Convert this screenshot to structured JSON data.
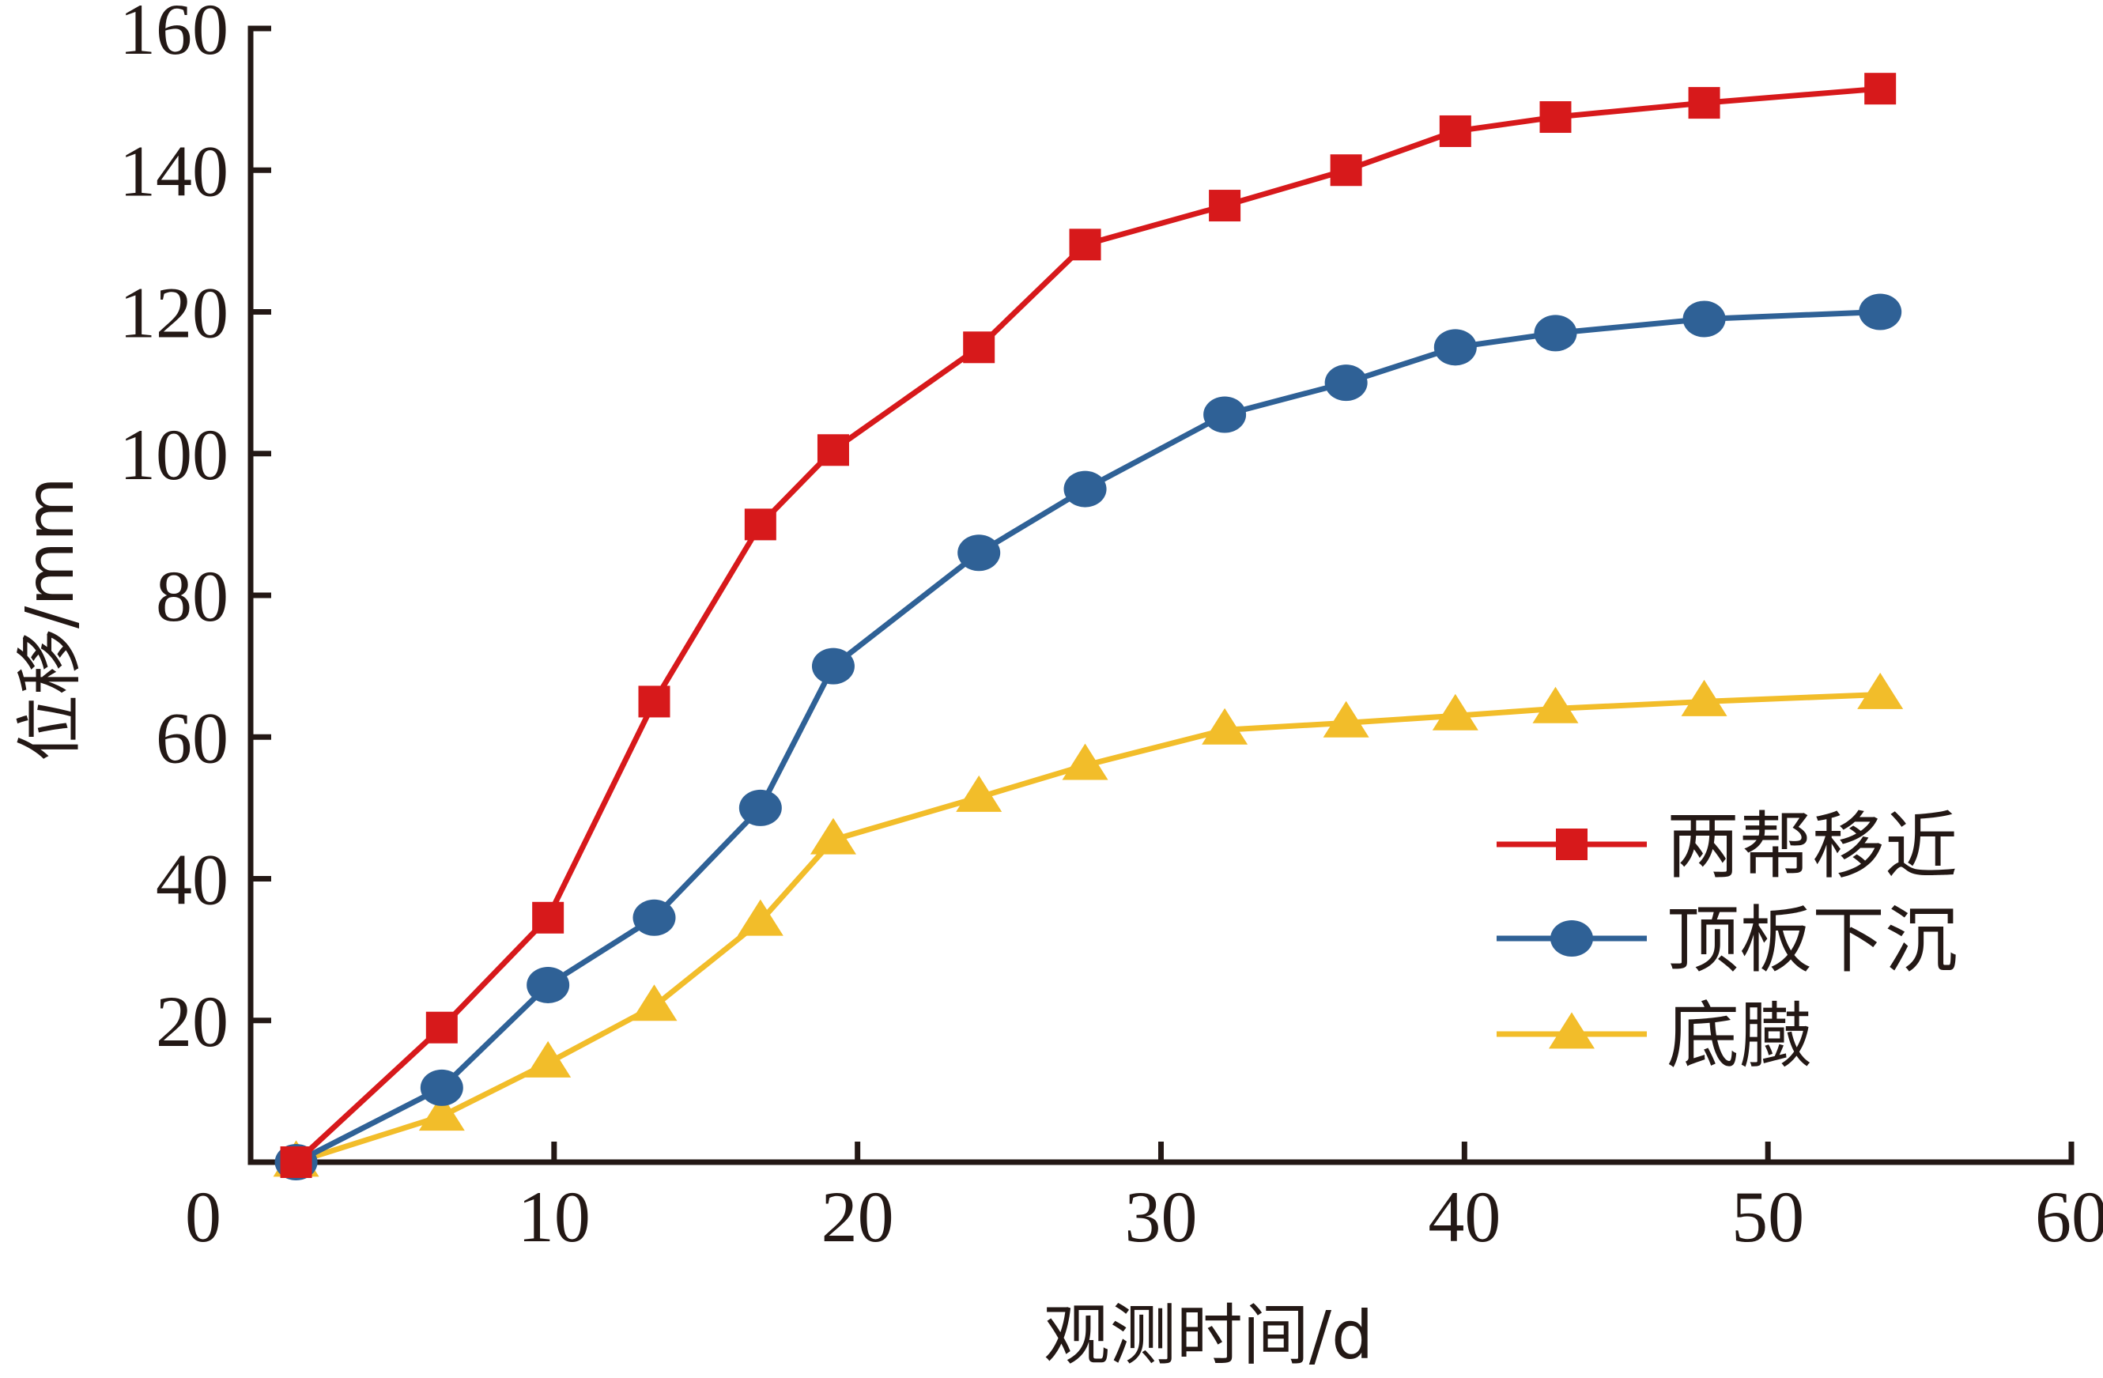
{
  "chart_data": {
    "type": "line",
    "title": "",
    "xlabel": "观测时间/d",
    "ylabel": "位移/mm",
    "xlim": [
      0,
      60
    ],
    "ylim": [
      0,
      160
    ],
    "x_ticks": [
      0,
      10,
      20,
      30,
      40,
      50,
      60
    ],
    "y_ticks": [
      20,
      40,
      60,
      80,
      100,
      120,
      140,
      160
    ],
    "grid": false,
    "legend_position": "right",
    "series": [
      {
        "name": "两帮移近",
        "color": "#d7191b",
        "marker": "square",
        "x": [
          1.5,
          6.3,
          9.8,
          13.3,
          16.8,
          19.2,
          24.0,
          27.5,
          32.1,
          36.1,
          39.7,
          43.0,
          47.9,
          53.7
        ],
        "y": [
          0,
          19,
          34.5,
          65,
          90,
          100.5,
          115,
          129.5,
          135,
          140,
          145.5,
          147.5,
          149.5,
          151.5
        ]
      },
      {
        "name": "顶板下沉",
        "color": "#2f6196",
        "marker": "circle",
        "x": [
          1.5,
          6.3,
          9.8,
          13.3,
          16.8,
          19.2,
          24.0,
          27.5,
          32.1,
          36.1,
          39.7,
          43.0,
          47.9,
          53.7
        ],
        "y": [
          0,
          10.5,
          25,
          34.5,
          50,
          70,
          86,
          95,
          105.5,
          110,
          115,
          117,
          119,
          120
        ]
      },
      {
        "name": "底臌",
        "color": "#f2bd2a",
        "marker": "triangle",
        "x": [
          1.5,
          6.3,
          9.8,
          13.3,
          16.8,
          19.2,
          24.0,
          27.5,
          32.1,
          36.1,
          39.7,
          43.0,
          47.9,
          53.7
        ],
        "y": [
          0,
          6.5,
          14,
          22,
          34,
          45.5,
          51.5,
          56,
          61,
          62,
          63,
          64,
          65,
          66
        ]
      }
    ]
  }
}
